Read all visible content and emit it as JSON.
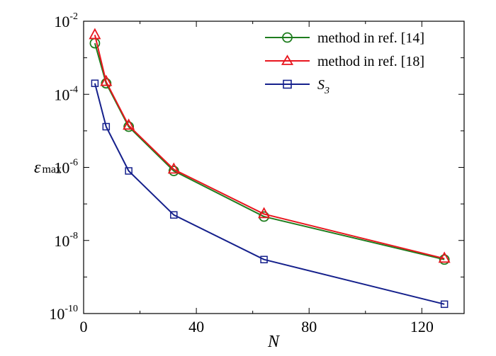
{
  "chart_data": {
    "type": "line",
    "xlabel": "N",
    "ylabel": "ε",
    "ylabel_sub": "max",
    "xlim": [
      0,
      135
    ],
    "ylim": [
      1e-10,
      0.01
    ],
    "yscale": "log",
    "xticks": [
      0,
      40,
      80,
      120
    ],
    "xtick_labels": [
      "0",
      "40",
      "80",
      "120"
    ],
    "yticks": [
      1e-10,
      1e-08,
      1e-06,
      0.0001,
      0.01
    ],
    "ytick_labels": [
      {
        "base": "10",
        "exp": "-10"
      },
      {
        "base": "10",
        "exp": "-8"
      },
      {
        "base": "10",
        "exp": "-6"
      },
      {
        "base": "10",
        "exp": "-4"
      },
      {
        "base": "10",
        "exp": "-2"
      }
    ],
    "legend_position": "top-right",
    "grid": false,
    "series": [
      {
        "name": "method in ref. [14]",
        "color": "#1e7d1e",
        "marker": "circle",
        "x": [
          4,
          8,
          16,
          32,
          64,
          128
        ],
        "y": [
          0.0025,
          0.0002,
          1.3e-05,
          8e-07,
          4.5e-08,
          3e-09
        ]
      },
      {
        "name": "method in ref. [18]",
        "color": "#e8161e",
        "marker": "triangle",
        "x": [
          4,
          8,
          16,
          32,
          64,
          128
        ],
        "y": [
          0.0042,
          0.00022,
          1.4e-05,
          8.8e-07,
          5.3e-08,
          3.2e-09
        ]
      },
      {
        "name": "S",
        "name_sub": "3",
        "color": "#15208c",
        "marker": "square",
        "x": [
          4,
          8,
          16,
          32,
          64,
          128
        ],
        "y": [
          0.0002,
          1.3e-05,
          8e-07,
          5e-08,
          3e-09,
          1.8e-10
        ]
      }
    ]
  }
}
